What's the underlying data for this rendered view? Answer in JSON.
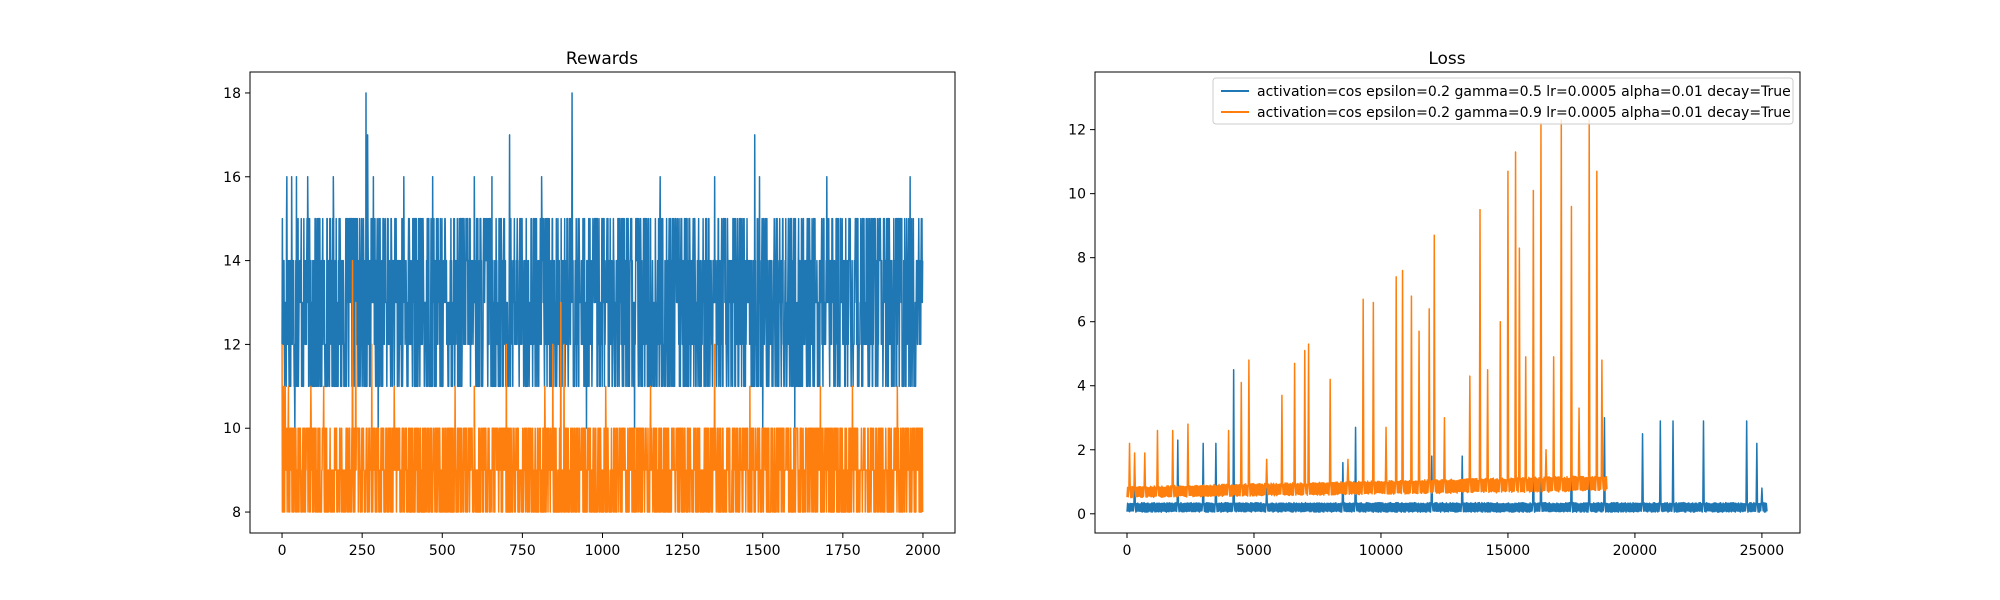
{
  "colors": {
    "series1": "#1f77b4",
    "series2": "#ff7f0e",
    "axis": "#000000",
    "background": "#ffffff"
  },
  "chart_data": [
    {
      "type": "line",
      "title": "Rewards",
      "xlabel": "",
      "ylabel": "",
      "xlim": [
        -100,
        2100
      ],
      "ylim": [
        7.5,
        18.5
      ],
      "xticks": [
        0,
        250,
        500,
        750,
        1000,
        1250,
        1500,
        1750,
        2000
      ],
      "yticks": [
        8,
        10,
        12,
        14,
        16,
        18
      ],
      "x_count": 2000,
      "legend": "none",
      "grid": false,
      "series": [
        {
          "color": "#1f77b4",
          "values_support": [
            11,
            12,
            13,
            14,
            15
          ],
          "spikes": [
            [
              15,
              16
            ],
            [
              30,
              16
            ],
            [
              45,
              16
            ],
            [
              80,
              16
            ],
            [
              160,
              16
            ],
            [
              262,
              18
            ],
            [
              267,
              17
            ],
            [
              285,
              16
            ],
            [
              380,
              16
            ],
            [
              470,
              16
            ],
            [
              600,
              16
            ],
            [
              655,
              16
            ],
            [
              710,
              17
            ],
            [
              810,
              16
            ],
            [
              905,
              18
            ],
            [
              1180,
              16
            ],
            [
              1350,
              16
            ],
            [
              1475,
              17
            ],
            [
              1490,
              16
            ],
            [
              1700,
              16
            ],
            [
              1960,
              16
            ]
          ],
          "dips": [
            [
              40,
              10
            ],
            [
              300,
              10
            ],
            [
              950,
              10
            ],
            [
              1100,
              10
            ],
            [
              1500,
              10
            ],
            [
              1600,
              10
            ]
          ]
        },
        {
          "color": "#ff7f0e",
          "values_support": [
            8,
            9,
            10
          ],
          "spikes": [
            [
              0,
              12
            ],
            [
              5,
              11
            ],
            [
              10,
              11
            ],
            [
              20,
              11
            ],
            [
              90,
              11
            ],
            [
              130,
              11
            ],
            [
              220,
              14
            ],
            [
              230,
              13
            ],
            [
              280,
              12
            ],
            [
              350,
              11
            ],
            [
              540,
              11
            ],
            [
              600,
              11
            ],
            [
              700,
              12
            ],
            [
              820,
              11
            ],
            [
              845,
              12
            ],
            [
              870,
              13
            ],
            [
              880,
              12
            ],
            [
              1010,
              11
            ],
            [
              1150,
              11
            ],
            [
              1350,
              12
            ],
            [
              1460,
              11
            ],
            [
              1680,
              11
            ],
            [
              1780,
              11
            ],
            [
              1920,
              11
            ]
          ],
          "dips": []
        }
      ]
    },
    {
      "type": "line",
      "title": "Loss",
      "xlabel": "",
      "ylabel": "",
      "xlim": [
        -1260,
        26500
      ],
      "ylim": [
        -0.6,
        13.8
      ],
      "xticks": [
        0,
        5000,
        10000,
        15000,
        20000,
        25000
      ],
      "yticks": [
        0,
        2,
        4,
        6,
        8,
        10,
        12
      ],
      "legend": "top-right",
      "grid": false,
      "series": [
        {
          "name": "activation=cos epsilon=0.2 gamma=0.5 lr=0.0005 alpha=0.01 decay=True",
          "color": "#1f77b4",
          "x_max": 25200,
          "base_band": [
            0.05,
            0.35
          ],
          "spikes": [
            [
              300,
              1.5
            ],
            [
              2000,
              2.3
            ],
            [
              3000,
              2.2
            ],
            [
              3500,
              2.2
            ],
            [
              4200,
              4.5
            ],
            [
              5500,
              0.8
            ],
            [
              8500,
              1.6
            ],
            [
              9000,
              2.7
            ],
            [
              12000,
              1.8
            ],
            [
              13200,
              1.8
            ],
            [
              16000,
              2.8
            ],
            [
              16300,
              3.0
            ],
            [
              17500,
              2.6
            ],
            [
              18200,
              2.8
            ],
            [
              18800,
              3.0
            ],
            [
              20300,
              2.5
            ],
            [
              21000,
              2.9
            ],
            [
              21500,
              2.9
            ],
            [
              22700,
              2.9
            ],
            [
              24400,
              2.9
            ],
            [
              24800,
              2.2
            ],
            [
              25000,
              0.8
            ]
          ]
        },
        {
          "name": "activation=cos epsilon=0.2 gamma=0.9 lr=0.0005 alpha=0.01 decay=True",
          "color": "#ff7f0e",
          "x_max": 18900,
          "base_band_start": [
            0.5,
            0.85
          ],
          "base_band_end": [
            0.7,
            1.2
          ],
          "spikes": [
            [
              100,
              2.2
            ],
            [
              300,
              1.9
            ],
            [
              700,
              1.9
            ],
            [
              1200,
              2.6
            ],
            [
              1800,
              2.6
            ],
            [
              2400,
              2.8
            ],
            [
              4000,
              2.6
            ],
            [
              4500,
              4.1
            ],
            [
              4800,
              4.8
            ],
            [
              5500,
              1.7
            ],
            [
              6100,
              3.7
            ],
            [
              6600,
              4.7
            ],
            [
              7000,
              5.1
            ],
            [
              7150,
              5.3
            ],
            [
              8000,
              4.2
            ],
            [
              8700,
              1.7
            ],
            [
              9300,
              6.7
            ],
            [
              9700,
              6.6
            ],
            [
              10200,
              2.7
            ],
            [
              10600,
              7.4
            ],
            [
              10850,
              7.6
            ],
            [
              11200,
              6.8
            ],
            [
              11500,
              5.7
            ],
            [
              11900,
              6.4
            ],
            [
              12100,
              8.7
            ],
            [
              12500,
              3.0
            ],
            [
              13500,
              4.3
            ],
            [
              13900,
              9.5
            ],
            [
              14200,
              4.5
            ],
            [
              14700,
              6.0
            ],
            [
              15000,
              10.7
            ],
            [
              15300,
              11.3
            ],
            [
              15450,
              8.3
            ],
            [
              15700,
              4.9
            ],
            [
              16000,
              10.1
            ],
            [
              16300,
              12.2
            ],
            [
              16500,
              2.0
            ],
            [
              16800,
              4.9
            ],
            [
              17100,
              12.3
            ],
            [
              17500,
              9.6
            ],
            [
              17800,
              3.3
            ],
            [
              18200,
              12.3
            ],
            [
              18500,
              10.7
            ],
            [
              18700,
              4.8
            ]
          ]
        }
      ]
    }
  ]
}
